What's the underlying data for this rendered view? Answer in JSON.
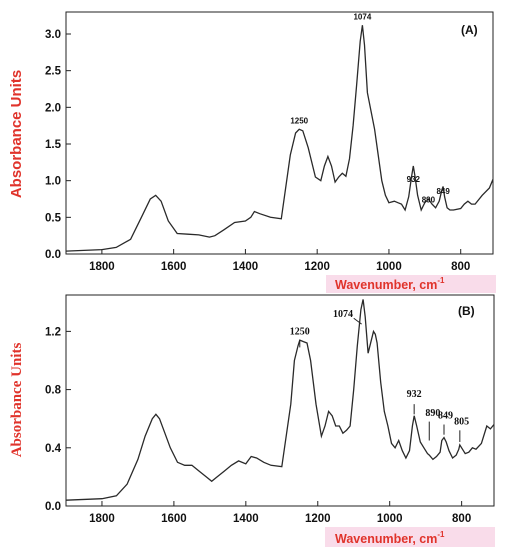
{
  "colors": {
    "axis_label": "#e0332b",
    "xlabel_bg": "#f9dcea",
    "line": "#2a2a2a",
    "frame": "#222222"
  },
  "chart_data": [
    {
      "type": "line",
      "panel_label": "(A)",
      "xlabel_main": "Wavenumber, cm",
      "xlabel_sup": "-1",
      "ylabel": "Absorbance Units",
      "xlim": [
        1900,
        710
      ],
      "ylim": [
        0,
        3.3
      ],
      "x_reversed": true,
      "x_ticks": [
        "1800",
        "1600",
        "1400",
        "1200",
        "1000",
        "800"
      ],
      "y_ticks": [
        "0.0",
        "0.5",
        "1.0",
        "1.5",
        "2.0",
        "2.5",
        "3.0"
      ],
      "peak_labels": [
        {
          "text": "1250",
          "x": 1250,
          "y": 1.78
        },
        {
          "text": "1074",
          "x": 1074,
          "y": 3.2
        },
        {
          "text": "932",
          "x": 932,
          "y": 0.98
        },
        {
          "text": "890",
          "x": 890,
          "y": 0.7
        },
        {
          "text": "849",
          "x": 849,
          "y": 0.82
        }
      ],
      "series": [
        {
          "x": [
            1900,
            1800,
            1760,
            1720,
            1690,
            1665,
            1650,
            1635,
            1615,
            1590,
            1560,
            1530,
            1500,
            1485,
            1460,
            1430,
            1400,
            1385,
            1375,
            1360,
            1330,
            1300,
            1275,
            1260,
            1250,
            1240,
            1225,
            1205,
            1190,
            1180,
            1170,
            1160,
            1150,
            1140,
            1130,
            1120,
            1110,
            1100,
            1090,
            1080,
            1074,
            1068,
            1060,
            1050,
            1040,
            1030,
            1020,
            1010,
            1000,
            985,
            975,
            965,
            955,
            945,
            937,
            932,
            927,
            920,
            910,
            900,
            890,
            880,
            870,
            860,
            852,
            849,
            845,
            838,
            830,
            820,
            800,
            790,
            780,
            770,
            760,
            740,
            720,
            710
          ],
          "y": [
            0.04,
            0.06,
            0.09,
            0.2,
            0.5,
            0.75,
            0.8,
            0.72,
            0.45,
            0.28,
            0.27,
            0.26,
            0.23,
            0.25,
            0.33,
            0.43,
            0.45,
            0.5,
            0.58,
            0.55,
            0.5,
            0.48,
            1.35,
            1.65,
            1.7,
            1.68,
            1.45,
            1.05,
            1.0,
            1.2,
            1.33,
            1.2,
            0.98,
            1.05,
            1.1,
            1.06,
            1.3,
            1.75,
            2.3,
            2.9,
            3.12,
            2.85,
            2.2,
            1.95,
            1.7,
            1.35,
            1.0,
            0.8,
            0.7,
            0.72,
            0.7,
            0.68,
            0.6,
            0.78,
            1.05,
            1.2,
            1.05,
            0.8,
            0.6,
            0.7,
            0.75,
            0.68,
            0.63,
            0.72,
            0.88,
            0.92,
            0.78,
            0.63,
            0.6,
            0.6,
            0.62,
            0.68,
            0.72,
            0.68,
            0.68,
            0.8,
            0.9,
            1.02
          ]
        }
      ]
    },
    {
      "type": "line",
      "panel_label": "(B)",
      "xlabel_main": "Wavenumber, cm",
      "xlabel_sup": "-1",
      "ylabel": "Absorbance Units",
      "xlim": [
        1900,
        710
      ],
      "ylim": [
        0,
        1.45
      ],
      "x_reversed": true,
      "x_ticks": [
        "1800",
        "1600",
        "1400",
        "1200",
        "1000",
        "800"
      ],
      "y_ticks": [
        "0.0",
        "0.4",
        "0.8",
        "1.2"
      ],
      "peak_labels": [
        {
          "text": "1250",
          "x": 1250,
          "y": 1.18,
          "leader": [
            1250,
            1.14,
            1250,
            1.09
          ]
        },
        {
          "text": "1074",
          "x": 1130,
          "y": 1.3,
          "leader": [
            1100,
            1.29,
            1078,
            1.25
          ]
        },
        {
          "text": "932",
          "x": 932,
          "y": 0.75,
          "leader": [
            932,
            0.7,
            932,
            0.63
          ]
        },
        {
          "text": "890",
          "x": 880,
          "y": 0.62,
          "leader": [
            890,
            0.58,
            890,
            0.45
          ]
        },
        {
          "text": "849",
          "x": 845,
          "y": 0.6,
          "leader": [
            849,
            0.56,
            849,
            0.49
          ]
        },
        {
          "text": "805",
          "x": 800,
          "y": 0.56,
          "leader": [
            805,
            0.52,
            805,
            0.44
          ]
        }
      ],
      "series": [
        {
          "x": [
            1900,
            1800,
            1760,
            1730,
            1700,
            1680,
            1660,
            1650,
            1640,
            1625,
            1610,
            1590,
            1570,
            1550,
            1530,
            1510,
            1495,
            1480,
            1460,
            1440,
            1420,
            1400,
            1385,
            1370,
            1350,
            1330,
            1300,
            1275,
            1265,
            1255,
            1250,
            1240,
            1230,
            1220,
            1205,
            1190,
            1180,
            1170,
            1160,
            1150,
            1140,
            1130,
            1120,
            1110,
            1100,
            1090,
            1080,
            1074,
            1068,
            1060,
            1050,
            1045,
            1040,
            1035,
            1025,
            1015,
            1005,
            995,
            985,
            975,
            965,
            955,
            945,
            937,
            932,
            925,
            915,
            905,
            895,
            890,
            880,
            870,
            860,
            855,
            849,
            843,
            835,
            825,
            815,
            808,
            805,
            800,
            790,
            780,
            770,
            760,
            745,
            730,
            720,
            710
          ],
          "y": [
            0.04,
            0.05,
            0.07,
            0.15,
            0.32,
            0.48,
            0.6,
            0.63,
            0.6,
            0.5,
            0.4,
            0.3,
            0.28,
            0.28,
            0.24,
            0.2,
            0.17,
            0.2,
            0.24,
            0.28,
            0.31,
            0.29,
            0.34,
            0.33,
            0.3,
            0.28,
            0.27,
            0.7,
            1.0,
            1.1,
            1.14,
            1.13,
            1.12,
            1.0,
            0.7,
            0.48,
            0.55,
            0.65,
            0.62,
            0.55,
            0.55,
            0.5,
            0.52,
            0.55,
            0.8,
            1.1,
            1.35,
            1.42,
            1.3,
            1.05,
            1.15,
            1.2,
            1.18,
            1.12,
            0.85,
            0.65,
            0.55,
            0.43,
            0.4,
            0.45,
            0.38,
            0.33,
            0.38,
            0.55,
            0.62,
            0.55,
            0.44,
            0.4,
            0.36,
            0.35,
            0.32,
            0.34,
            0.37,
            0.45,
            0.47,
            0.44,
            0.38,
            0.33,
            0.35,
            0.39,
            0.42,
            0.4,
            0.36,
            0.37,
            0.4,
            0.39,
            0.43,
            0.55,
            0.53,
            0.56
          ]
        }
      ]
    }
  ]
}
